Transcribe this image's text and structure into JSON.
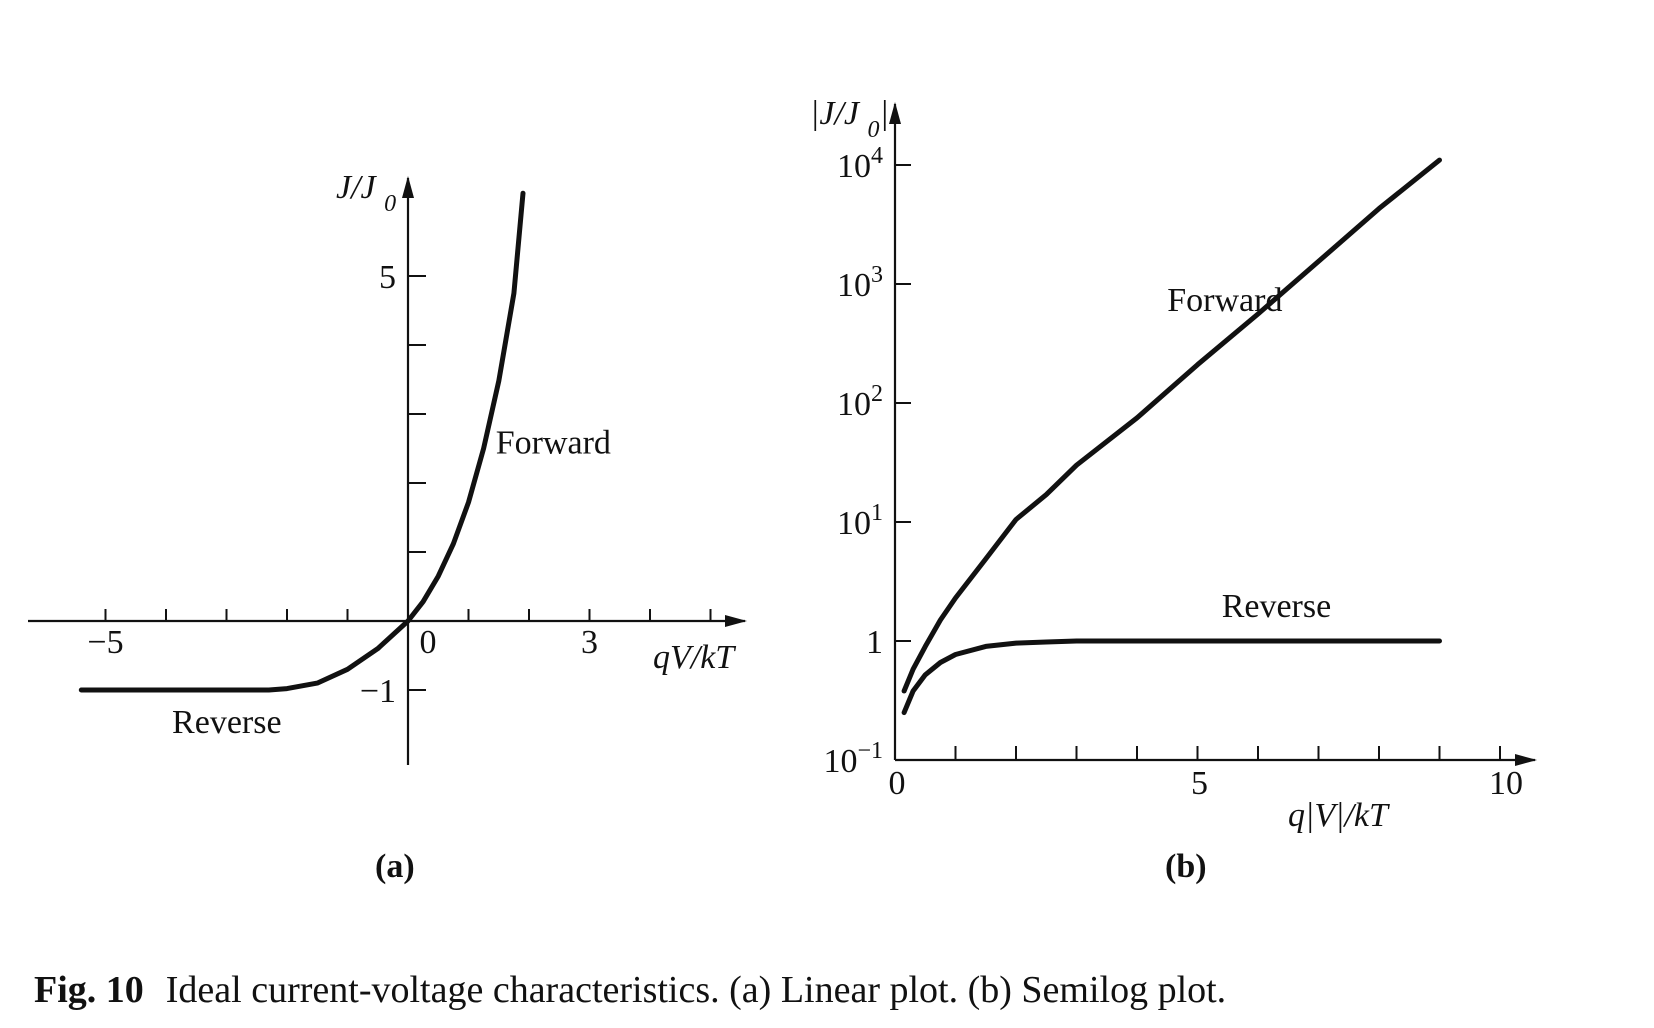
{
  "caption": {
    "figure": "Fig. 10",
    "text": "Ideal current-voltage characteristics. (a) Linear plot. (b) Semilog plot."
  },
  "chart_data": [
    {
      "type": "line",
      "panel": "(a)",
      "xlabel": "qV/kT",
      "ylabel": "J/J0",
      "xlim": [
        -6.5,
        5.5
      ],
      "ylim": [
        -2.1,
        6.4
      ],
      "x_tick_labels": [
        {
          "value": -5,
          "label": "−5"
        },
        {
          "value": 0,
          "label": "0"
        },
        {
          "value": 3,
          "label": "3"
        }
      ],
      "y_tick_labels": [
        {
          "value": 5,
          "label": "5"
        },
        {
          "value": -1,
          "label": "−1"
        }
      ],
      "x_ticks": [
        -5,
        -4,
        -3,
        -2,
        -1,
        0,
        1,
        2,
        3,
        4,
        5
      ],
      "y_ticks": [
        -1,
        1,
        2,
        3,
        4,
        5
      ],
      "series": [
        {
          "x": [
            -5.4,
            -4,
            -3,
            -2.3,
            -2,
            -1.5,
            -1,
            -0.5,
            0,
            0.25,
            0.5,
            0.75,
            1,
            1.25,
            1.5,
            1.75,
            1.9
          ],
          "y": [
            -1,
            -1,
            -1,
            -1,
            -0.98,
            -0.9,
            -0.7,
            -0.4,
            0,
            0.28,
            0.65,
            1.12,
            1.72,
            2.5,
            3.48,
            4.75,
            6.2
          ]
        }
      ],
      "annotations": [
        {
          "text": "Forward",
          "x": 1.45,
          "y": 2.6
        },
        {
          "text": "Reverse",
          "x": -3.9,
          "y": -1.45
        }
      ]
    },
    {
      "type": "line",
      "panel": "(b)",
      "xlabel": "q|V|/kT",
      "ylabel": "|J/J0|",
      "yscale": "log",
      "xlim": [
        0,
        10.3
      ],
      "ylim": [
        0.1,
        30000
      ],
      "x_tick_labels": [
        {
          "value": 0,
          "label": "0"
        },
        {
          "value": 5,
          "label": "5"
        },
        {
          "value": 10,
          "label": "10"
        }
      ],
      "x_ticks": [
        0,
        1,
        2,
        3,
        4,
        5,
        6,
        7,
        8,
        9,
        10
      ],
      "y_ticks": [
        0.1,
        1,
        10,
        100,
        1000,
        10000
      ],
      "y_tick_labels": [
        {
          "value": 0.1,
          "base": "10",
          "exp": "−1"
        },
        {
          "value": 1,
          "base": "1",
          "exp": ""
        },
        {
          "value": 10,
          "base": "10",
          "exp": "1"
        },
        {
          "value": 100,
          "base": "10",
          "exp": "2"
        },
        {
          "value": 1000,
          "base": "10",
          "exp": "3"
        },
        {
          "value": 10000,
          "base": "10",
          "exp": "4"
        }
      ],
      "series": [
        {
          "x": [
            0.15,
            0.3,
            0.5,
            0.75,
            1,
            1.5,
            2,
            2.5,
            3,
            4,
            5,
            6,
            7,
            8,
            9
          ],
          "y": [
            0.38,
            0.58,
            0.9,
            1.5,
            2.3,
            4.9,
            10.5,
            17,
            30,
            75,
            210,
            560,
            1550,
            4300,
            11000
          ]
        },
        {
          "x": [
            0.15,
            0.3,
            0.5,
            0.75,
            1,
            1.5,
            2,
            2.5,
            3,
            4,
            5,
            6,
            7,
            8,
            9
          ],
          "y": [
            0.25,
            0.38,
            0.52,
            0.66,
            0.77,
            0.9,
            0.96,
            0.98,
            1,
            1,
            1,
            1,
            1,
            1,
            1
          ]
        }
      ],
      "annotations": [
        {
          "text": "Forward",
          "x": 4.5,
          "y": 750
        },
        {
          "text": "Reverse",
          "x": 5.4,
          "y": 2.0
        }
      ]
    }
  ]
}
